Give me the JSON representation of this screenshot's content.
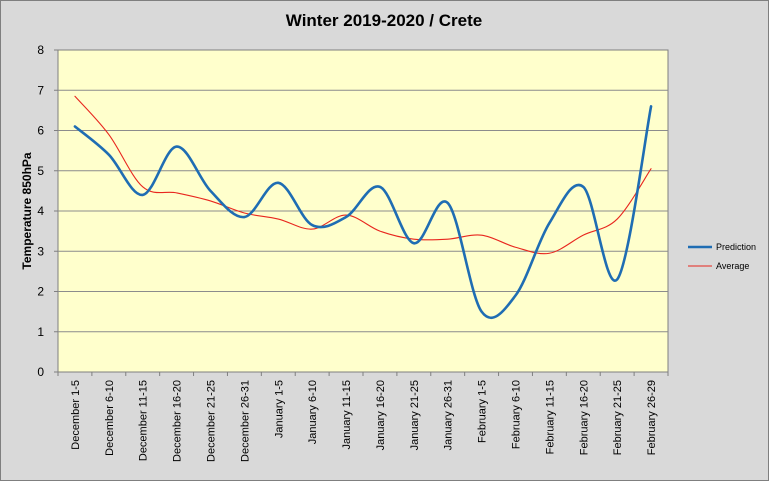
{
  "chart_data": {
    "type": "line",
    "title": "Winter 2019-2020 / Crete",
    "xlabel": "",
    "ylabel": "Temperature 850hPa",
    "ylim": [
      0,
      8
    ],
    "yticks": [
      "0",
      "1",
      "2",
      "3",
      "4",
      "5",
      "6",
      "7",
      "8"
    ],
    "grid": "horizontal",
    "legend_position": "right",
    "background_color": "#ffffcc",
    "categories": [
      "December 1-5",
      "December 6-10",
      "December 11-15",
      "December 16-20",
      "December 21-25",
      "December 26-31",
      "January 1-5",
      "January 6-10",
      "January 11-15",
      "January 16-20",
      "January 21-25",
      "January 26-31",
      "February 1-5",
      "February 6-10",
      "February 11-15",
      "February 16-20",
      "February 21-25",
      "February 26-29"
    ],
    "series": [
      {
        "name": "Prediction",
        "color": "#1f6db3",
        "values": [
          6.1,
          5.4,
          4.4,
          5.6,
          4.5,
          3.85,
          4.7,
          3.65,
          3.85,
          4.6,
          3.2,
          4.2,
          1.5,
          1.9,
          3.7,
          4.6,
          2.3,
          6.6
        ]
      },
      {
        "name": "Average",
        "color": "#e8261e",
        "values": [
          6.85,
          5.9,
          4.6,
          4.45,
          4.25,
          3.95,
          3.8,
          3.55,
          3.9,
          3.5,
          3.3,
          3.3,
          3.4,
          3.1,
          2.95,
          3.4,
          3.8,
          5.05
        ]
      }
    ]
  }
}
